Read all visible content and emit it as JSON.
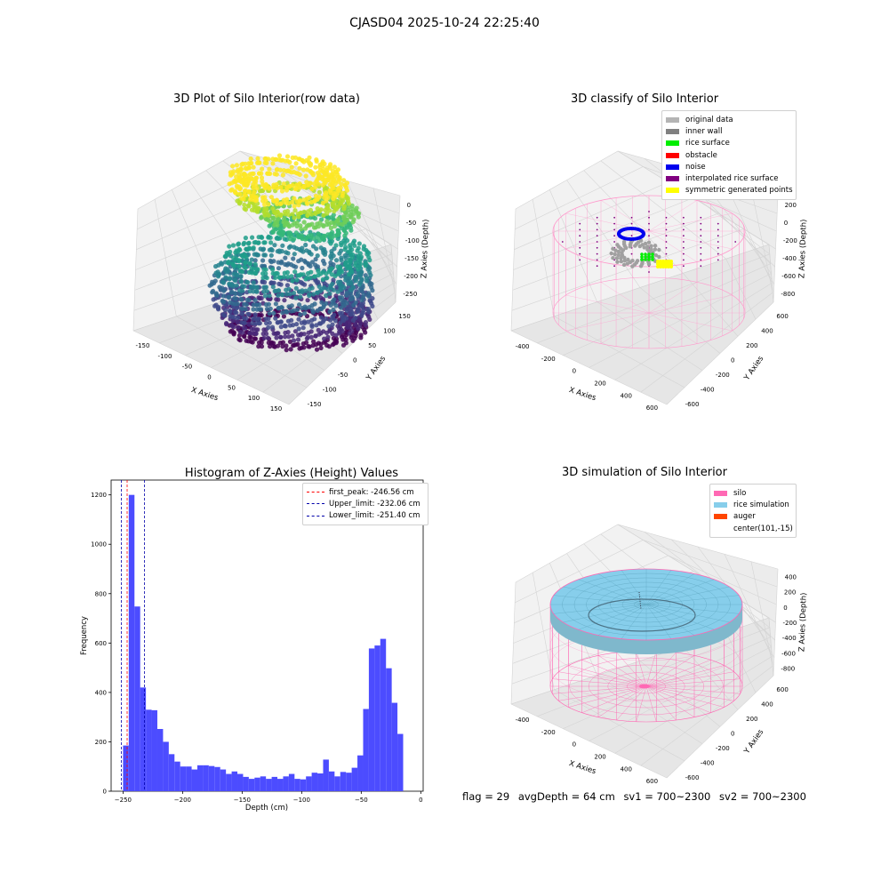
{
  "figure": {
    "suptitle": "CJASD04 2025-10-24 22:25:40"
  },
  "plots": {
    "raw": {
      "title": "3D Plot of Silo Interior(row data)",
      "xlabel": "X Axies",
      "ylabel": "Y Axies",
      "zlabel": "Z Axies (Depth)",
      "xticks": [
        "-150",
        "-100",
        "-50",
        "0",
        "50",
        "100",
        "150"
      ],
      "yticks": [
        "-150",
        "-100",
        "-50",
        "0",
        "50",
        "100",
        "150"
      ],
      "zticks": [
        "0",
        "-50",
        "-100",
        "-150",
        "-200",
        "-250"
      ],
      "colormap": "viridis"
    },
    "classify": {
      "title": "3D classify of Silo Interior",
      "xlabel": "X Axies",
      "ylabel": "Y Axies",
      "zlabel": "Z Axies (Depth)",
      "xticks": [
        "-400",
        "-200",
        "0",
        "200",
        "400",
        "600"
      ],
      "yticks": [
        "-600",
        "-400",
        "-200",
        "0",
        "200",
        "400",
        "600"
      ],
      "zticks": [
        "200",
        "0",
        "-200",
        "-400",
        "-600",
        "-800"
      ],
      "legend": [
        {
          "label": "original data",
          "color": "#b4b4b4"
        },
        {
          "label": "inner wall",
          "color": "#808080"
        },
        {
          "label": "rice surface",
          "color": "#00ee00"
        },
        {
          "label": "obstacle",
          "color": "#ff0000"
        },
        {
          "label": "noise",
          "color": "#0000ee"
        },
        {
          "label": "interpolated rice surface",
          "color": "#800080"
        },
        {
          "label": "symmetric generated points",
          "color": "#ffff00"
        }
      ]
    },
    "simulation": {
      "title": "3D simulation of Silo Interior",
      "xlabel": "X Axies",
      "ylabel": "Y Axies",
      "zlabel": "Z Axies (Depth)",
      "xticks": [
        "-400",
        "-200",
        "0",
        "200",
        "400",
        "600"
      ],
      "yticks": [
        "-600",
        "-400",
        "-200",
        "0",
        "200",
        "400",
        "600"
      ],
      "zticks": [
        "400",
        "200",
        "0",
        "-200",
        "-400",
        "-600",
        "-800"
      ],
      "legend": [
        {
          "label": "silo",
          "color": "#ff69b4"
        },
        {
          "label": "rice simulation",
          "color": "#87ceeb"
        },
        {
          "label": "auger",
          "color": "#ff4500"
        },
        {
          "label": "center(101,-15)",
          "color": "#ffffff"
        }
      ]
    }
  },
  "chart_data": {
    "type": "bar",
    "title": "Histogram of Z-Axies (Height) Values",
    "xlabel": "Depth (cm)",
    "ylabel": "Frequency",
    "xlim": [
      -260,
      2
    ],
    "ylim": [
      0,
      1260
    ],
    "xticks": [
      -250,
      -200,
      -150,
      -100,
      -50,
      0
    ],
    "yticks": [
      0,
      200,
      400,
      600,
      800,
      1000,
      1200
    ],
    "bar_color": "#4c4cff",
    "bin_start": -250,
    "bin_width": 4.8,
    "values": [
      185,
      1200,
      748,
      420,
      330,
      328,
      252,
      200,
      150,
      120,
      100,
      100,
      88,
      105,
      105,
      102,
      98,
      88,
      70,
      80,
      70,
      58,
      50,
      55,
      60,
      50,
      58,
      50,
      60,
      70,
      50,
      48,
      60,
      75,
      72,
      128,
      80,
      60,
      78,
      75,
      95,
      145,
      333,
      578,
      590,
      617,
      498,
      358,
      232
    ],
    "reference_lines": [
      {
        "label": "first_peak: -246.56 cm",
        "x": -246.56,
        "color": "#ff0000"
      },
      {
        "label": "Upper_limit: -232.06 cm",
        "x": -232.06,
        "color": "#0000aa"
      },
      {
        "label": "Lower_limit: -251.40 cm",
        "x": -251.4,
        "color": "#0000aa"
      }
    ],
    "legend_position": "upper right"
  },
  "status": {
    "flag": "flag = 29",
    "avg_depth": "avgDepth = 64 cm",
    "sv1": "sv1 = 700~2300",
    "sv2": "sv2 = 700~2300"
  }
}
